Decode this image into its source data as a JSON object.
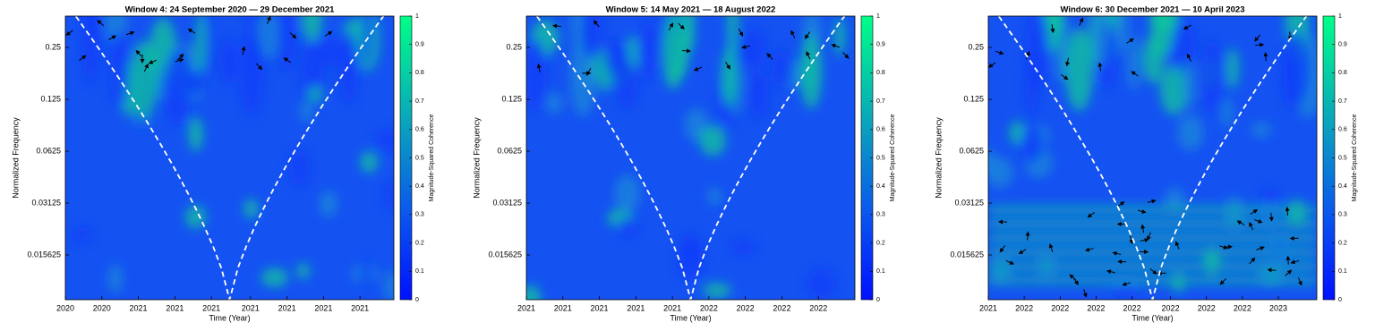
{
  "chart_data": [
    {
      "type": "heatmap",
      "title": "Window 4: 24 September 2020 — 29 December 2021",
      "x_label": "Time (Year)",
      "y_label": "Normalized Frequency",
      "log_scale": true,
      "xlim": [
        2020.73,
        2021.99
      ],
      "xticks": [
        {
          "value": 2020.73,
          "label": "2020"
        },
        {
          "value": 2020.87,
          "label": "2020"
        },
        {
          "value": 2021.01,
          "label": "2021"
        },
        {
          "value": 2021.15,
          "label": "2021"
        },
        {
          "value": 2021.29,
          "label": "2021"
        },
        {
          "value": 2021.44,
          "label": "2021"
        },
        {
          "value": 2021.58,
          "label": "2021"
        },
        {
          "value": 2021.72,
          "label": "2021"
        },
        {
          "value": 2021.86,
          "label": "2021"
        }
      ],
      "ylim": [
        0.0086,
        0.38
      ],
      "yticks": [
        0.25,
        0.125,
        0.0625,
        0.03125,
        0.015625
      ],
      "colorbar": {
        "label": "Magnitude-Squared Coherence",
        "lim": [
          0,
          1
        ],
        "ticks": [
          0,
          0.1,
          0.2,
          0.3,
          0.4,
          0.5,
          0.6,
          0.7,
          0.8,
          0.9,
          1
        ]
      }
    },
    {
      "type": "heatmap",
      "title": "Window 5: 14 May 2021 — 18 August 2022",
      "x_label": "Time (Year)",
      "y_label": "Normalized Frequency",
      "log_scale": true,
      "xlim": [
        2021.37,
        2022.63
      ],
      "xticks": [
        {
          "value": 2021.37,
          "label": "2021"
        },
        {
          "value": 2021.51,
          "label": "2021"
        },
        {
          "value": 2021.65,
          "label": "2021"
        },
        {
          "value": 2021.79,
          "label": "2021"
        },
        {
          "value": 2021.93,
          "label": "2021"
        },
        {
          "value": 2022.07,
          "label": "2022"
        },
        {
          "value": 2022.21,
          "label": "2022"
        },
        {
          "value": 2022.35,
          "label": "2022"
        },
        {
          "value": 2022.49,
          "label": "2022"
        }
      ],
      "ylim": [
        0.0086,
        0.38
      ],
      "yticks": [
        0.25,
        0.125,
        0.0625,
        0.03125,
        0.015625
      ],
      "colorbar": {
        "label": "Magnitude-Squared Coherence",
        "lim": [
          0,
          1
        ],
        "ticks": [
          0,
          0.1,
          0.2,
          0.3,
          0.4,
          0.5,
          0.6,
          0.7,
          0.8,
          0.9,
          1
        ]
      }
    },
    {
      "type": "heatmap",
      "title": "Window 6: 30 December 2021 — 10 April 2023",
      "x_label": "Time (Year)",
      "y_label": "Normalized Frequency",
      "log_scale": true,
      "xlim": [
        2021.99,
        2023.27
      ],
      "xticks": [
        {
          "value": 2021.99,
          "label": "2021"
        },
        {
          "value": 2022.13,
          "label": "2022"
        },
        {
          "value": 2022.27,
          "label": "2022"
        },
        {
          "value": 2022.41,
          "label": "2022"
        },
        {
          "value": 2022.55,
          "label": "2022"
        },
        {
          "value": 2022.7,
          "label": "2022"
        },
        {
          "value": 2022.84,
          "label": "2022"
        },
        {
          "value": 2022.98,
          "label": "2022"
        },
        {
          "value": 2023.12,
          "label": "2023"
        }
      ],
      "ylim": [
        0.0086,
        0.38
      ],
      "yticks": [
        0.25,
        0.125,
        0.0625,
        0.03125,
        0.015625
      ],
      "colorbar": {
        "label": "Magnitude-Squared Coherence",
        "lim": [
          0,
          1
        ],
        "ticks": [
          0,
          0.1,
          0.2,
          0.3,
          0.4,
          0.5,
          0.6,
          0.7,
          0.8,
          0.9,
          1
        ]
      }
    }
  ]
}
